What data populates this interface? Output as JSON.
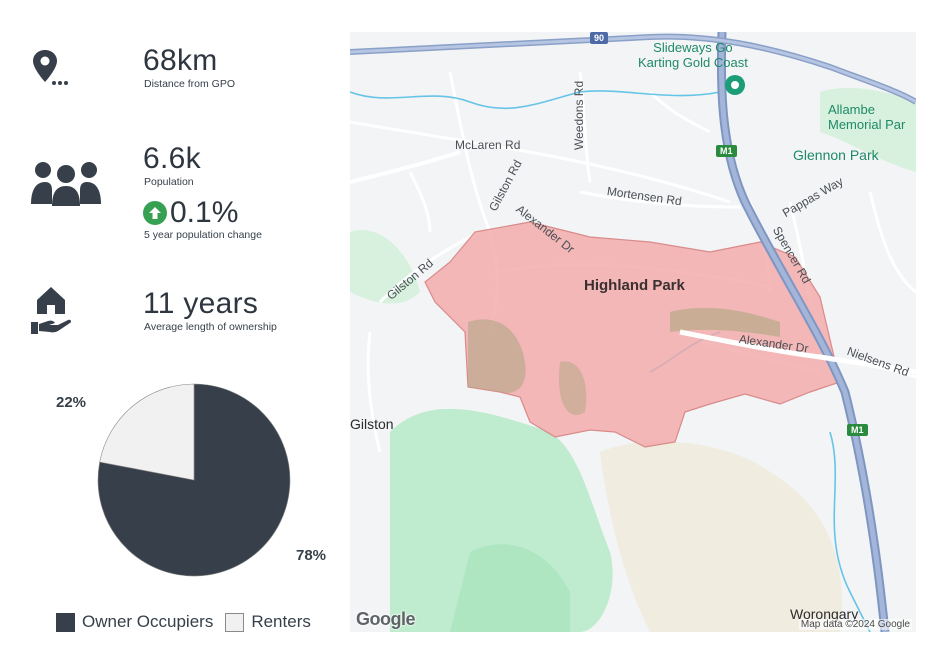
{
  "stats": {
    "distance": {
      "value": "68km",
      "label": "Distance from GPO",
      "icon": "location-pin-icon"
    },
    "population": {
      "value": "6.6k",
      "label": "Population",
      "icon": "people-group-icon"
    },
    "population_change": {
      "value": "0.1%",
      "label": "5 year population change",
      "icon": "arrow-up-circle-icon",
      "color": "#36a152"
    },
    "ownership": {
      "value": "11 years",
      "label": "Average length of ownership",
      "icon": "house-in-hand-icon"
    }
  },
  "chart_data": {
    "type": "pie",
    "slices": [
      {
        "name": "Owner Occupiers",
        "value": 78,
        "label": "78%",
        "color": "#37404a"
      },
      {
        "name": "Renters",
        "value": 22,
        "label": "22%",
        "color": "#f1f1f1"
      }
    ],
    "legend": [
      "Owner Occupiers",
      "Renters"
    ],
    "legend_position": "bottom"
  },
  "map": {
    "suburb": "Highland Park",
    "places": [
      "Gilston",
      "Glennon Park",
      "Worongary"
    ],
    "poi": {
      "line1": "Slideways Go",
      "line2": "Karting Gold Coast"
    },
    "park": {
      "line1": "Allambe",
      "line2": "Memorial Par"
    },
    "roads": {
      "mclaren": "McLaren Rd",
      "weedons": "Weedons Rd",
      "gilston1": "Gilston Rd",
      "gilston2": "Gilston Rd",
      "mortensen": "Mortensen Rd",
      "alexander1": "Alexander Dr",
      "alexander2": "Alexander Dr",
      "pappas": "Pappas Way",
      "spencer": "Spencer Rd",
      "nielsens": "Nielsens Rd"
    },
    "shields": [
      "90",
      "M1",
      "M1"
    ],
    "logo": "Google",
    "attribution": "Map data ©2024 Google"
  }
}
